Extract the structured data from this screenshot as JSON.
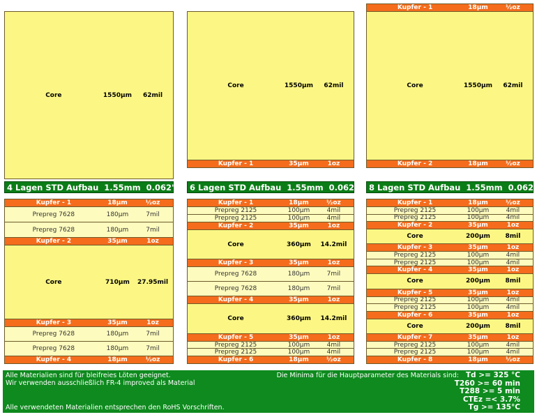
{
  "top_panels": [
    {
      "layers": [
        {
          "name": "Core",
          "thickness": "1550µm",
          "weight": "62mil"
        }
      ]
    },
    {
      "layers": [
        {
          "name": "Core",
          "thickness": "1550µm",
          "weight": "62mil"
        },
        {
          "name": "Kupfer - 1",
          "thickness": "35µm",
          "weight": "1oz"
        }
      ]
    },
    {
      "layers": [
        {
          "name": "Kupfer - 1",
          "thickness": "18µm",
          "weight": "½oz"
        },
        {
          "name": "Core",
          "thickness": "1550µm",
          "weight": "62mil"
        },
        {
          "name": "Kupfer - 2",
          "thickness": "18µm",
          "weight": "½oz"
        }
      ]
    }
  ],
  "stacks": [
    {
      "title": "4 Lagen STD Aufbau  1.55mm  0.062\"",
      "layers": [
        {
          "name": "Kupfer - 1",
          "thickness": "18µm",
          "weight": "½oz"
        },
        {
          "name": "Prepreg 7628",
          "thickness": "180µm",
          "weight": "7mil"
        },
        {
          "name": "Prepreg 7628",
          "thickness": "180µm",
          "weight": "7mil"
        },
        {
          "name": "Kupfer - 2",
          "thickness": "35µm",
          "weight": "1oz"
        },
        {
          "name": "Core",
          "thickness": "710µm",
          "weight": "27.95mil"
        },
        {
          "name": "Kupfer - 3",
          "thickness": "35µm",
          "weight": "1oz"
        },
        {
          "name": "Prepreg 7628",
          "thickness": "180µm",
          "weight": "7mil"
        },
        {
          "name": "Prepreg 7628",
          "thickness": "180µm",
          "weight": "7mil"
        },
        {
          "name": "Kupfer - 4",
          "thickness": "18µm",
          "weight": "½oz"
        }
      ]
    },
    {
      "title": "6 Lagen STD Aufbau  1.55mm  0.062\"",
      "layers": [
        {
          "name": "Kupfer - 1",
          "thickness": "18µm",
          "weight": "½oz"
        },
        {
          "name": "Prepreg 2125",
          "thickness": "100µm",
          "weight": "4mil"
        },
        {
          "name": "Prepreg 2125",
          "thickness": "100µm",
          "weight": "4mil"
        },
        {
          "name": "Kupfer - 2",
          "thickness": "35µm",
          "weight": "1oz"
        },
        {
          "name": "Core",
          "thickness": "360µm",
          "weight": "14.2mil"
        },
        {
          "name": "Kupfer - 3",
          "thickness": "35µm",
          "weight": "1oz"
        },
        {
          "name": "Prepreg 7628",
          "thickness": "180µm",
          "weight": "7mil"
        },
        {
          "name": "Prepreg 7628",
          "thickness": "180µm",
          "weight": "7mil"
        },
        {
          "name": "Kupfer - 4",
          "thickness": "35µm",
          "weight": "1oz"
        },
        {
          "name": "Core",
          "thickness": "360µm",
          "weight": "14.2mil"
        },
        {
          "name": "Kupfer - 5",
          "thickness": "35µm",
          "weight": "1oz"
        },
        {
          "name": "Prepreg 2125",
          "thickness": "100µm",
          "weight": "4mil"
        },
        {
          "name": "Prepreg 2125",
          "thickness": "100µm",
          "weight": "4mil"
        },
        {
          "name": "Kupfer - 6",
          "thickness": "18µm",
          "weight": "½oz"
        }
      ]
    },
    {
      "title": "8 Lagen STD Aufbau  1.55mm  0.062\"",
      "layers": [
        {
          "name": "Kupfer - 1",
          "thickness": "18µm",
          "weight": "½oz"
        },
        {
          "name": "Prepreg 2125",
          "thickness": "100µm",
          "weight": "4mil"
        },
        {
          "name": "Prepreg 2125",
          "thickness": "100µm",
          "weight": "4mil"
        },
        {
          "name": "Kupfer - 2",
          "thickness": "35µm",
          "weight": "1oz"
        },
        {
          "name": "Core",
          "thickness": "200µm",
          "weight": "8mil"
        },
        {
          "name": "Kupfer - 3",
          "thickness": "35µm",
          "weight": "1oz"
        },
        {
          "name": "Prepreg 2125",
          "thickness": "100µm",
          "weight": "4mil"
        },
        {
          "name": "Prepreg 2125",
          "thickness": "100µm",
          "weight": "4mil"
        },
        {
          "name": "Kupfer - 4",
          "thickness": "35µm",
          "weight": "1oz"
        },
        {
          "name": "Core",
          "thickness": "200µm",
          "weight": "8mil"
        },
        {
          "name": "Kupfer - 5",
          "thickness": "35µm",
          "weight": "1oz"
        },
        {
          "name": "Prepreg 2125",
          "thickness": "100µm",
          "weight": "4mil"
        },
        {
          "name": "Prepreg 2125",
          "thickness": "100µm",
          "weight": "4mil"
        },
        {
          "name": "Kupfer - 6",
          "thickness": "35µm",
          "weight": "1oz"
        },
        {
          "name": "Core",
          "thickness": "200µm",
          "weight": "8mil"
        },
        {
          "name": "Kupfer - 7",
          "thickness": "35µm",
          "weight": "1oz"
        },
        {
          "name": "Prepreg 2125",
          "thickness": "100µm",
          "weight": "4mil"
        },
        {
          "name": "Prepreg 2125",
          "thickness": "100µm",
          "weight": "4mil"
        },
        {
          "name": "Kupfer - 8",
          "thickness": "18µm",
          "weight": "½oz"
        }
      ]
    }
  ],
  "footer": {
    "notes": [
      "Alle Materialien sind für bleifreies Löten geeignet.",
      "Wir verwenden ausschließlich FR-4 improved als Material",
      "Alle verwendeten Materialien entsprechen den RoHS Vorschriften."
    ],
    "minima_heading": "Die Minima für die Hauptparameter des Materials sind:",
    "minima": [
      "Td >= 325 °C",
      "T260 >= 60 min",
      "T288 >= 5 min",
      "CTEz =< 3.7%",
      "Tg >= 135°C"
    ]
  }
}
